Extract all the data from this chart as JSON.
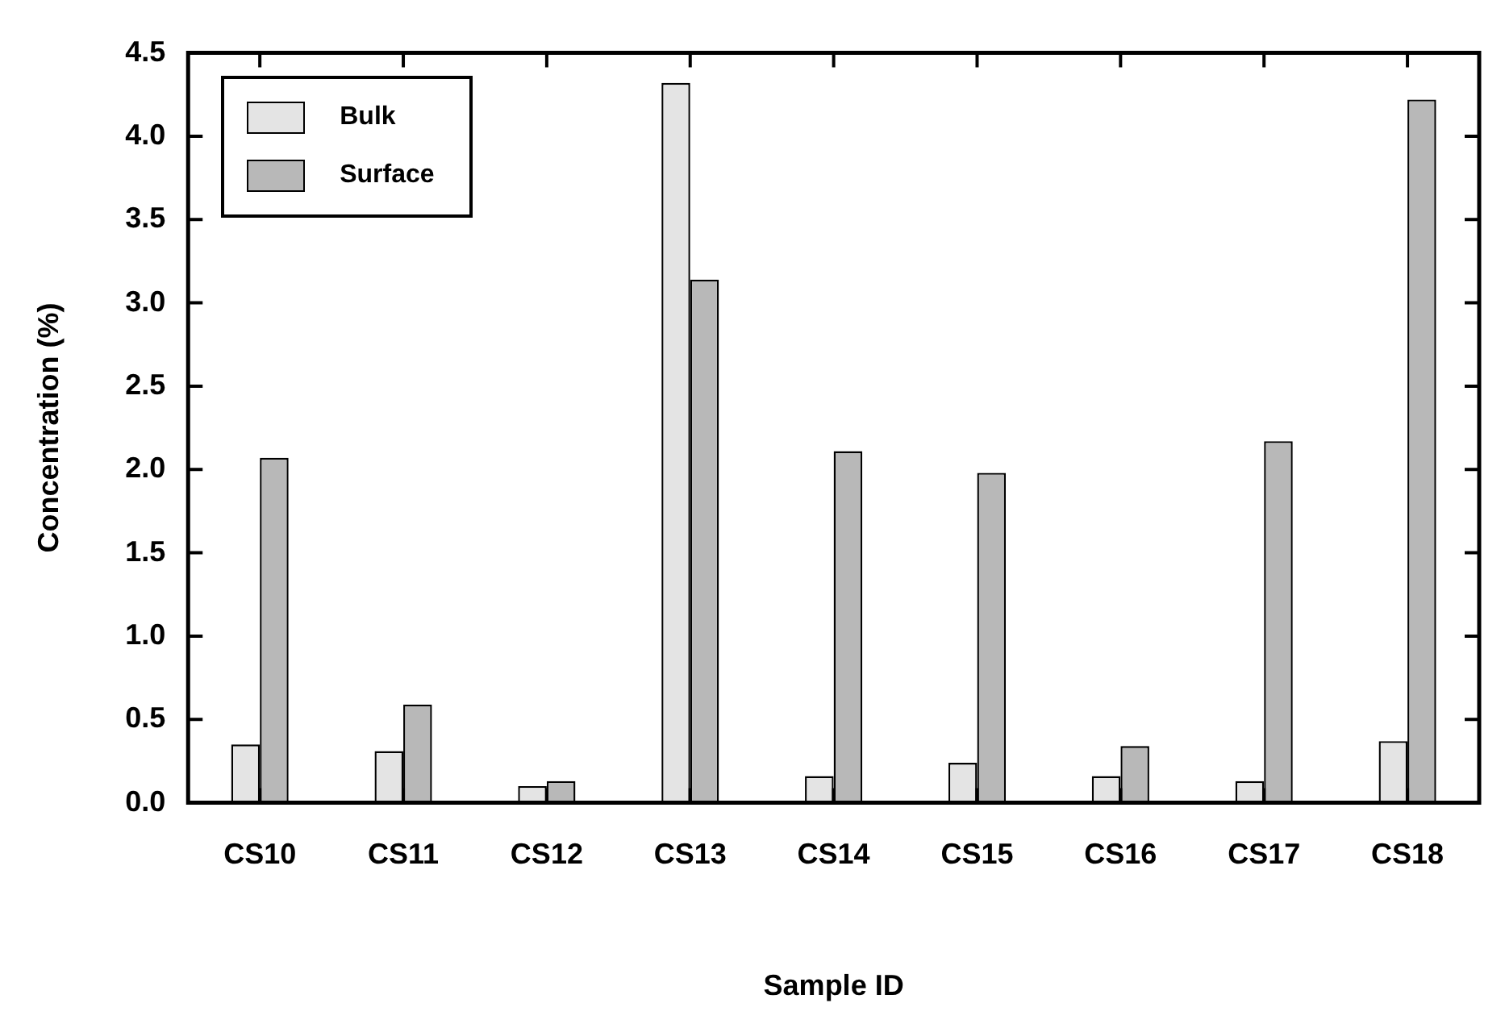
{
  "chart_data": {
    "type": "bar",
    "xlabel": "Sample ID",
    "ylabel": "Concentration (%)",
    "categories": [
      "CS10",
      "CS11",
      "CS12",
      "CS13",
      "CS14",
      "CS15",
      "CS16",
      "CS17",
      "CS18"
    ],
    "series": [
      {
        "name": "Bulk",
        "color": "#e4e4e4",
        "values": [
          0.35,
          0.31,
          0.1,
          4.32,
          0.16,
          0.24,
          0.16,
          0.13,
          0.37
        ]
      },
      {
        "name": "Surface",
        "color": "#b8b8b8",
        "values": [
          2.07,
          0.59,
          0.13,
          3.14,
          2.11,
          1.98,
          0.34,
          2.17,
          4.22
        ]
      }
    ],
    "ylim": [
      0,
      4.5
    ],
    "yticks": [
      {
        "value": 0,
        "label": "0.0"
      },
      {
        "value": 0.5,
        "label": "0.5"
      },
      {
        "value": 1,
        "label": "1.0"
      },
      {
        "value": 1.5,
        "label": "1.5"
      },
      {
        "value": 2,
        "label": "2.0"
      },
      {
        "value": 2.5,
        "label": "2.5"
      },
      {
        "value": 3,
        "label": "3.0"
      },
      {
        "value": 3.5,
        "label": "3.5"
      },
      {
        "value": 4,
        "label": "4.0"
      },
      {
        "value": 4.5,
        "label": "4.5"
      }
    ],
    "grid": false,
    "legend": "top left"
  }
}
